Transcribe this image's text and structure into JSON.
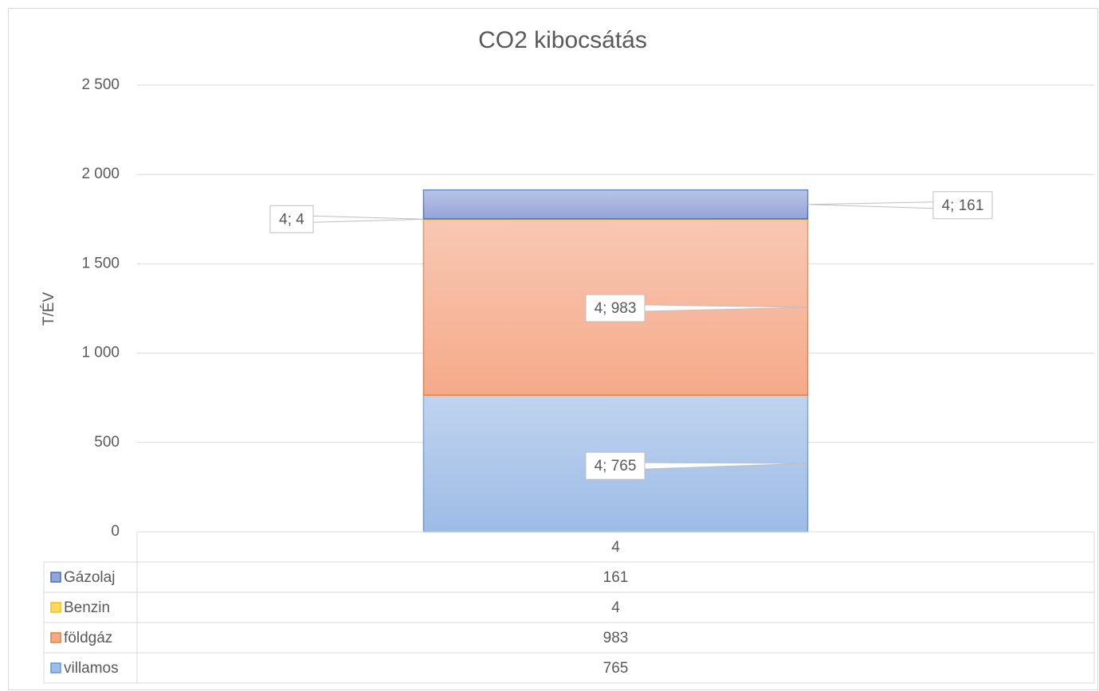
{
  "chart_data": {
    "type": "stacked_bar",
    "title": "CO2 kibocsátás",
    "y_label": "T/ÉV",
    "categories": [
      "4"
    ],
    "series": [
      {
        "name": "villamos",
        "color": "#9dbce6",
        "border": "#5b9bd5",
        "values": [
          765
        ],
        "value_labels": [
          "4; 765"
        ]
      },
      {
        "name": "földgáz",
        "color": "#f5aa8a",
        "border": "#ed7d31",
        "values": [
          983
        ],
        "value_labels": [
          "4; 983"
        ]
      },
      {
        "name": "Benzin",
        "color": "#ffd966",
        "border": "#ffc000",
        "values": [
          4
        ],
        "value_labels": [
          "4; 4"
        ]
      },
      {
        "name": "Gázolaj",
        "color": "#95a4d9",
        "border": "#4472c4",
        "values": [
          161
        ],
        "value_labels": [
          "4; 161"
        ]
      }
    ],
    "ylim": [
      0,
      2500
    ],
    "yticks": [
      0,
      500,
      {
        "value": 1000,
        "label": "1 000"
      },
      {
        "value": 1500,
        "label": "1 500"
      },
      {
        "value": 2000,
        "label": "2 000"
      },
      {
        "value": 2500,
        "label": "2 500"
      }
    ],
    "grid": true,
    "data_table": true
  }
}
